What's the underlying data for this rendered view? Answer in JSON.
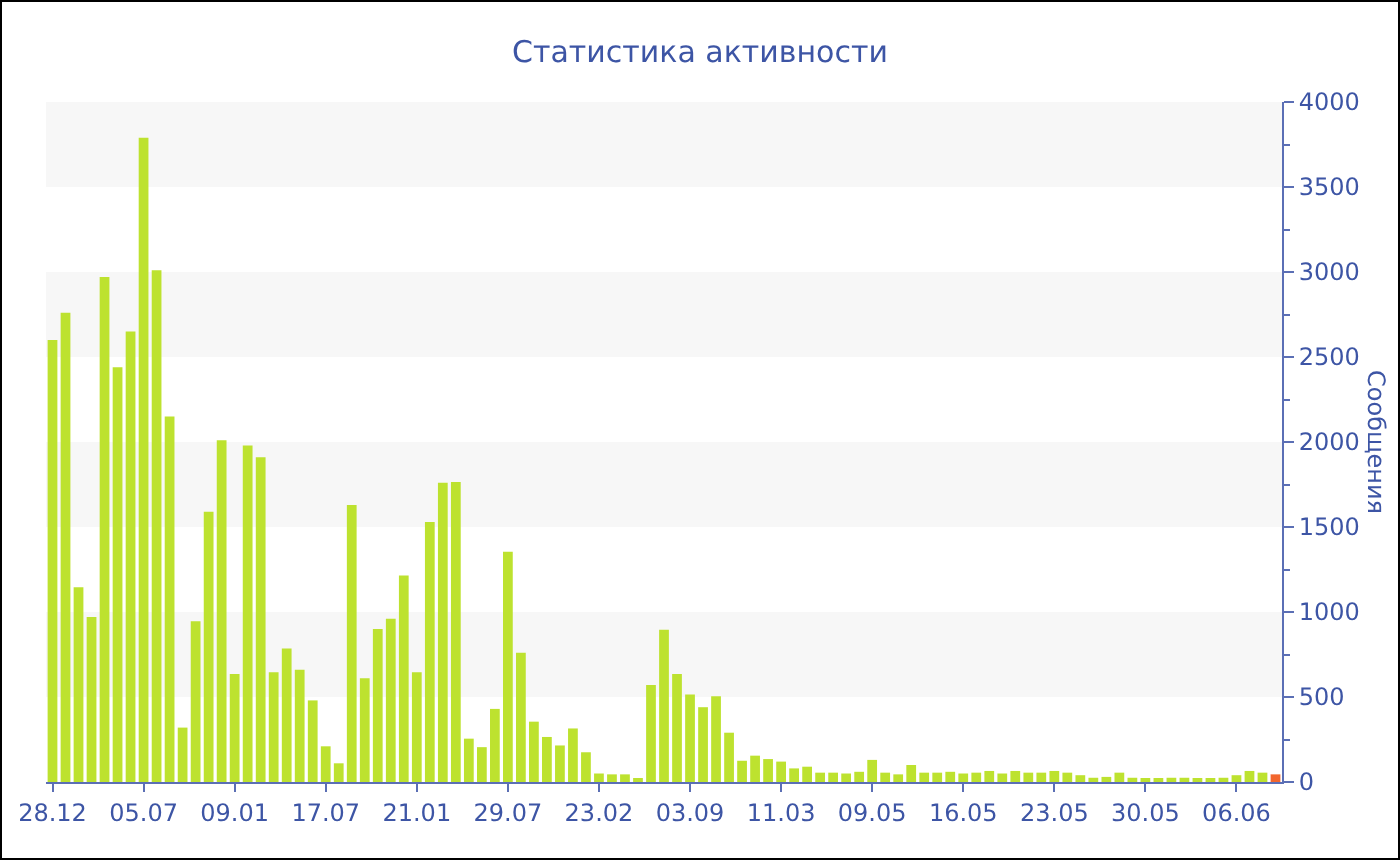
{
  "chart_data": {
    "type": "bar",
    "title": "Статистика активности",
    "ylabel": "Сообщения",
    "categories": [
      "28.12",
      null,
      null,
      null,
      null,
      null,
      null,
      "05.07",
      null,
      null,
      null,
      null,
      null,
      null,
      "09.01",
      null,
      null,
      null,
      null,
      null,
      null,
      "17.07",
      null,
      null,
      null,
      null,
      null,
      null,
      "21.01",
      null,
      null,
      null,
      null,
      null,
      null,
      "29.07",
      null,
      null,
      null,
      null,
      null,
      null,
      "23.02",
      null,
      null,
      null,
      null,
      null,
      null,
      "03.09",
      null,
      null,
      null,
      null,
      null,
      null,
      "11.03",
      null,
      null,
      null,
      null,
      null,
      null,
      "09.05",
      null,
      null,
      null,
      null,
      null,
      null,
      "16.05",
      null,
      null,
      null,
      null,
      null,
      null,
      "23.05",
      null,
      null,
      null,
      null,
      null,
      null,
      "30.05",
      null,
      null,
      null,
      null,
      null,
      null,
      "06.06",
      null,
      null,
      null
    ],
    "values": [
      2600,
      2760,
      1145,
      970,
      2970,
      2440,
      2650,
      3790,
      3010,
      2150,
      320,
      945,
      1590,
      2010,
      635,
      1980,
      1910,
      645,
      785,
      660,
      480,
      210,
      110,
      1630,
      610,
      900,
      960,
      1215,
      645,
      1530,
      1760,
      1765,
      255,
      205,
      430,
      1355,
      760,
      355,
      265,
      215,
      315,
      175,
      50,
      45,
      45,
      20,
      570,
      895,
      635,
      515,
      440,
      505,
      290,
      125,
      155,
      135,
      120,
      80,
      90,
      55,
      55,
      50,
      60,
      130,
      55,
      45,
      100,
      55,
      55,
      60,
      50,
      55,
      65,
      50,
      65,
      55,
      55,
      65,
      55,
      40,
      25,
      30,
      55,
      25,
      20,
      20,
      25,
      25,
      20,
      20,
      25,
      40,
      65,
      55,
      45
    ],
    "colors": [
      "#bde22f",
      "#bde22f",
      "#bde22f",
      "#bde22f",
      "#bde22f",
      "#bde22f",
      "#bde22f",
      "#bde22f",
      "#bde22f",
      "#bde22f",
      "#bde22f",
      "#bde22f",
      "#bde22f",
      "#bde22f",
      "#bde22f",
      "#bde22f",
      "#bde22f",
      "#bde22f",
      "#bde22f",
      "#bde22f",
      "#bde22f",
      "#bde22f",
      "#bde22f",
      "#bde22f",
      "#bde22f",
      "#bde22f",
      "#bde22f",
      "#bde22f",
      "#bde22f",
      "#bde22f",
      "#bde22f",
      "#bde22f",
      "#bde22f",
      "#bde22f",
      "#bde22f",
      "#bde22f",
      "#bde22f",
      "#bde22f",
      "#bde22f",
      "#bde22f",
      "#bde22f",
      "#bde22f",
      "#bde22f",
      "#bde22f",
      "#bde22f",
      "#bde22f",
      "#bde22f",
      "#bde22f",
      "#bde22f",
      "#bde22f",
      "#bde22f",
      "#bde22f",
      "#bde22f",
      "#bde22f",
      "#bde22f",
      "#bde22f",
      "#bde22f",
      "#bde22f",
      "#bde22f",
      "#bde22f",
      "#bde22f",
      "#bde22f",
      "#bde22f",
      "#bde22f",
      "#bde22f",
      "#bde22f",
      "#bde22f",
      "#bde22f",
      "#bde22f",
      "#bde22f",
      "#bde22f",
      "#bde22f",
      "#bde22f",
      "#bde22f",
      "#bde22f",
      "#bde22f",
      "#bde22f",
      "#bde22f",
      "#bde22f",
      "#bde22f",
      "#bde22f",
      "#bde22f",
      "#bde22f",
      "#bde22f",
      "#bde22f",
      "#bde22f",
      "#bde22f",
      "#bde22f",
      "#bde22f",
      "#bde22f",
      "#bde22f",
      "#bde22f",
      "#bde22f",
      "#bde22f",
      "#f2662e"
    ],
    "ylim": [
      0,
      4000
    ],
    "yticks": [
      0,
      500,
      1000,
      1500,
      2000,
      2500,
      3000,
      3500,
      4000
    ],
    "bands": [
      {
        "axis": "y",
        "from": 500,
        "to": 1000,
        "color": "#f7f7f7"
      },
      {
        "axis": "y",
        "from": 1500,
        "to": 2000,
        "color": "#f7f7f7"
      },
      {
        "axis": "y",
        "from": 2500,
        "to": 3000,
        "color": "#f7f7f7"
      },
      {
        "axis": "y",
        "from": 3500,
        "to": 4000,
        "color": "#f7f7f7"
      }
    ]
  }
}
